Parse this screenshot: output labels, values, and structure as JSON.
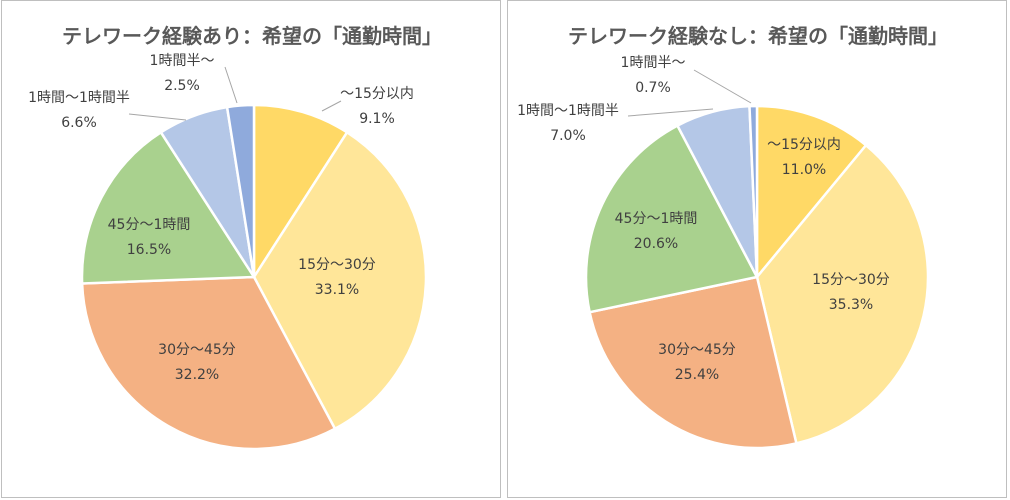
{
  "chart_data": [
    {
      "type": "pie",
      "title": "テレワーク経験あり：希望の「通勤時間」",
      "categories": [
        "～15分以内",
        "15分～30分",
        "30分～45分",
        "45分～1時間",
        "1時間～1時間半",
        "1時間半～"
      ],
      "values": [
        9.1,
        33.1,
        32.2,
        16.5,
        6.6,
        2.5
      ],
      "value_labels": [
        "9.1%",
        "33.1%",
        "32.2%",
        "16.5%",
        "6.6%",
        "2.5%"
      ],
      "colors": [
        "#FFD966",
        "#FFE699",
        "#F4B183",
        "#A9D18E",
        "#B4C7E7",
        "#8FAADC"
      ],
      "legend": "none"
    },
    {
      "type": "pie",
      "title": "テレワーク経験なし：希望の「通勤時間」",
      "categories": [
        "～15分以内",
        "15分～30分",
        "30分～45分",
        "45分～1時間",
        "1時間～1時間半",
        "1時間半～"
      ],
      "values": [
        11.0,
        35.3,
        25.4,
        20.6,
        7.0,
        0.7
      ],
      "value_labels": [
        "11.0%",
        "35.3%",
        "25.4%",
        "20.6%",
        "7.0%",
        "0.7%"
      ],
      "colors": [
        "#FFD966",
        "#FFE699",
        "#F4B183",
        "#A9D18E",
        "#B4C7E7",
        "#8FAADC"
      ],
      "legend": "none"
    }
  ]
}
